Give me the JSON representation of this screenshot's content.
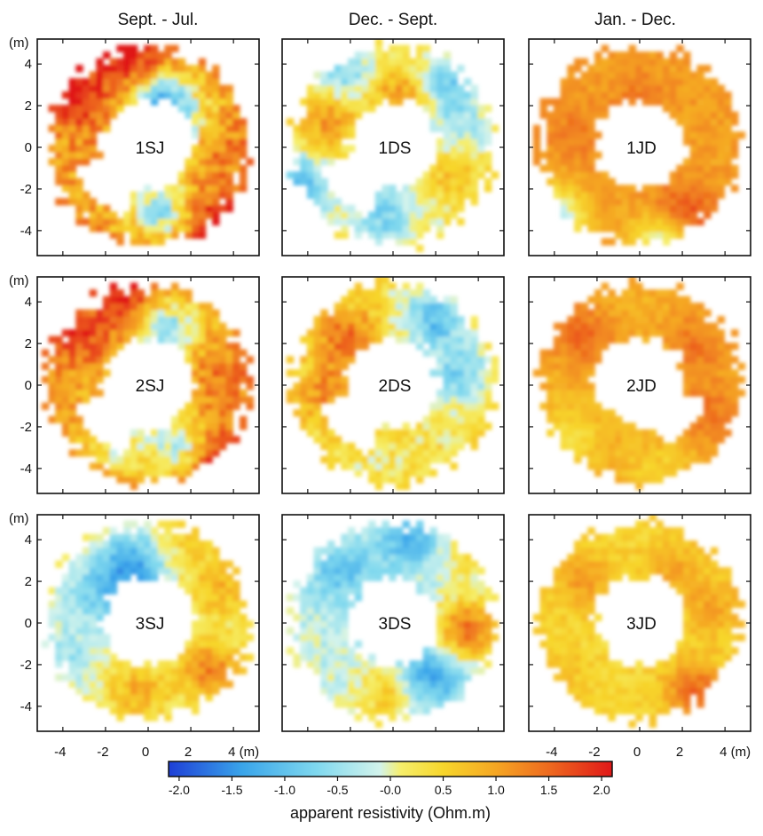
{
  "chart_data": {
    "type": "heatmap",
    "column_titles": [
      "Sept. - Jul.",
      "Dec. - Sept.",
      "Jan. - Dec."
    ],
    "unit_label": "(m)",
    "axis_ticks": [
      "-4",
      "-2",
      "0",
      "2",
      "4"
    ],
    "x_axis_ticks": [
      "-4",
      "-2",
      "0",
      "2",
      "4 (m)"
    ],
    "xlim": [
      -5.2,
      5.2
    ],
    "ylim": [
      -5.2,
      5.2
    ],
    "colorbar": {
      "title": "apparent resistivity (Ohm.m)",
      "ticks": [
        "-2.0",
        "-1.5",
        "-1.0",
        "-0.5",
        "-0.0",
        "0.5",
        "1.0",
        "1.5",
        "2.0"
      ],
      "range": [
        -2.1,
        2.1
      ],
      "colors": [
        {
          "value": -2.1,
          "color": "#1e3fd6"
        },
        {
          "value": -1.4,
          "color": "#3aa5ea"
        },
        {
          "value": -0.7,
          "color": "#7fd8ee"
        },
        {
          "value": -0.1,
          "color": "#d2f3ec"
        },
        {
          "value": 0.1,
          "color": "#f6ee6a"
        },
        {
          "value": 0.5,
          "color": "#f7d62c"
        },
        {
          "value": 1.0,
          "color": "#f5a623"
        },
        {
          "value": 1.5,
          "color": "#ee6a1f"
        },
        {
          "value": 2.1,
          "color": "#e01818"
        }
      ]
    },
    "panels": [
      {
        "label": "1SJ",
        "base": 1.05,
        "amp": 0.95,
        "hotspots": [
          [
            -0.9,
            4.5,
            1.2
          ],
          [
            -3.3,
            2.6,
            1.1
          ],
          [
            3.0,
            -3.6,
            1.0
          ],
          [
            0.5,
            2.2,
            -1.8
          ],
          [
            1.6,
            1.2,
            -1.0
          ],
          [
            0.6,
            -2.9,
            -1.6
          ],
          [
            3.6,
            0.0,
            0.3
          ]
        ]
      },
      {
        "label": "1DS",
        "base": 0.15,
        "amp": 0.6,
        "hotspots": [
          [
            -3.0,
            1.4,
            1.0
          ],
          [
            0.4,
            2.4,
            1.1
          ],
          [
            -2.4,
            3.6,
            -0.9
          ],
          [
            2.5,
            3.0,
            -1.1
          ],
          [
            -4.6,
            -2.0,
            -1.5
          ],
          [
            -0.4,
            -3.3,
            -0.9
          ],
          [
            2.8,
            -1.2,
            0.6
          ],
          [
            3.2,
            0.6,
            -0.5
          ]
        ]
      },
      {
        "label": "1JD",
        "base": 1.05,
        "amp": 0.35,
        "hotspots": [
          [
            2.0,
            -3.4,
            0.9
          ],
          [
            -2.8,
            0.6,
            0.3
          ],
          [
            -4.2,
            -3.5,
            -1.8
          ],
          [
            0.0,
            2.2,
            0.3
          ],
          [
            1.2,
            -4.6,
            -1.5
          ]
        ]
      },
      {
        "label": "2SJ",
        "base": 1.0,
        "amp": 0.8,
        "hotspots": [
          [
            -0.9,
            4.4,
            1.0
          ],
          [
            -3.2,
            2.4,
            0.8
          ],
          [
            3.0,
            -3.4,
            1.2
          ],
          [
            0.9,
            2.7,
            -1.6
          ],
          [
            1.6,
            -2.9,
            -1.4
          ],
          [
            -1.2,
            -2.8,
            -1.0
          ],
          [
            3.5,
            0.5,
            0.4
          ]
        ]
      },
      {
        "label": "2DS",
        "base": 0.3,
        "amp": 0.7,
        "hotspots": [
          [
            -2.1,
            2.3,
            1.2
          ],
          [
            -3.1,
            -0.4,
            0.9
          ],
          [
            1.9,
            3.2,
            -1.3
          ],
          [
            3.2,
            0.6,
            -1.0
          ],
          [
            -0.6,
            -4.3,
            -0.1
          ],
          [
            0.0,
            4.3,
            0.0
          ]
        ]
      },
      {
        "label": "2JD",
        "base": 0.9,
        "amp": 0.35,
        "hotspots": [
          [
            -2.7,
            2.4,
            0.6
          ],
          [
            2.6,
            2.0,
            0.5
          ],
          [
            -3.4,
            -2.6,
            -0.6
          ],
          [
            1.0,
            -4.3,
            -0.4
          ],
          [
            3.2,
            -1.3,
            0.5
          ]
        ]
      },
      {
        "label": "3SJ",
        "base": 0.0,
        "amp": 0.55,
        "hotspots": [
          [
            -0.8,
            2.7,
            -1.4
          ],
          [
            -2.4,
            1.4,
            -0.7
          ],
          [
            2.9,
            -2.2,
            1.3
          ],
          [
            -0.5,
            -3.3,
            0.9
          ],
          [
            3.4,
            1.6,
            0.8
          ],
          [
            -4.0,
            -1.6,
            -0.5
          ],
          [
            2.0,
            3.8,
            0.5
          ]
        ]
      },
      {
        "label": "3DS",
        "base": -0.2,
        "amp": 0.55,
        "hotspots": [
          [
            -2.4,
            2.5,
            -0.8
          ],
          [
            0.8,
            4.2,
            -1.0
          ],
          [
            3.5,
            -0.3,
            1.6
          ],
          [
            -0.2,
            -3.3,
            0.9
          ],
          [
            1.7,
            -2.6,
            -1.2
          ],
          [
            3.4,
            3.4,
            0.5
          ]
        ]
      },
      {
        "label": "3JD",
        "base": 0.45,
        "amp": 0.4,
        "hotspots": [
          [
            2.6,
            -3.2,
            1.0
          ],
          [
            -2.6,
            2.0,
            0.6
          ],
          [
            1.5,
            2.6,
            0.5
          ],
          [
            -3.4,
            -2.4,
            0.2
          ],
          [
            3.5,
            0.8,
            0.5
          ]
        ]
      }
    ]
  }
}
